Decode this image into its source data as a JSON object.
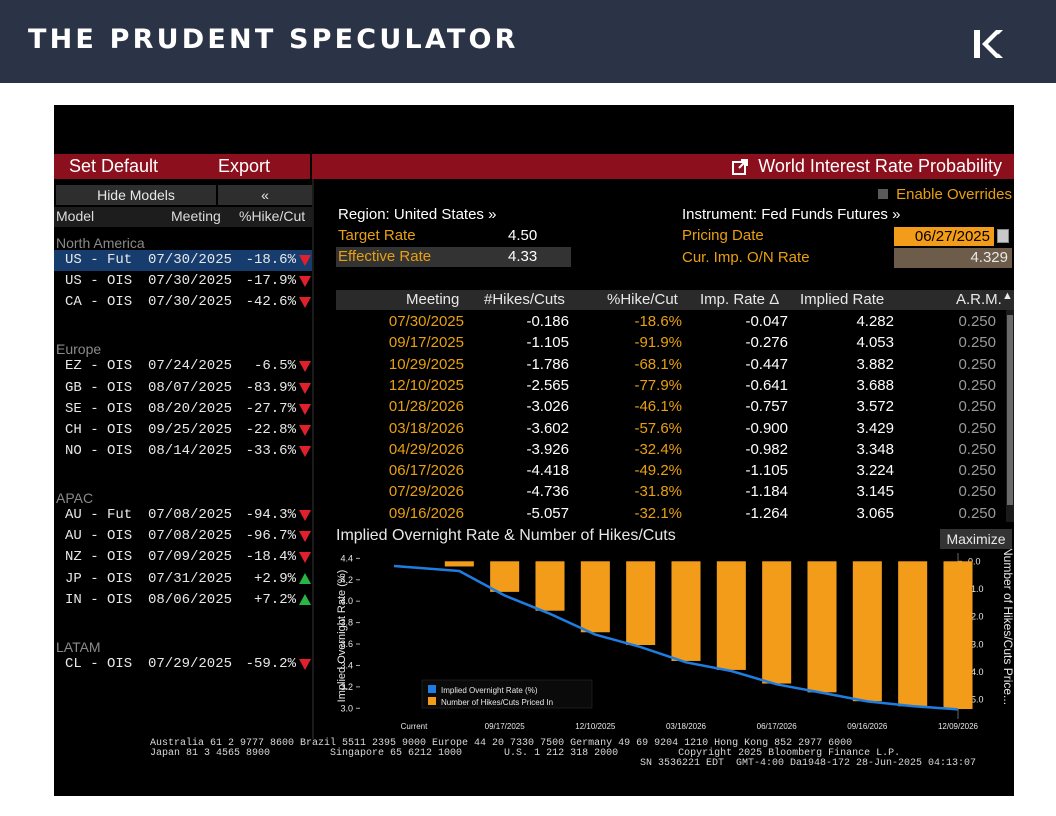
{
  "header": {
    "brand": "THE PRUDENT SPECULATOR",
    "logo_icon": "tps-logo-icon"
  },
  "toolbar": {
    "set_default": "Set Default",
    "export": "Export",
    "title": "World Interest Rate Probability",
    "title_icon": "external-link-icon"
  },
  "left_panel": {
    "hide_models": "Hide Models",
    "collapse": "«",
    "columns": [
      "Model",
      "Meeting",
      "%Hike/Cut"
    ],
    "groups": [
      {
        "name": "North America",
        "rows": [
          {
            "model": "US - Fut",
            "meeting": "07/30/2025",
            "pct": "-18.6%",
            "dir": "down",
            "selected": true
          },
          {
            "model": "US - OIS",
            "meeting": "07/30/2025",
            "pct": "-17.9%",
            "dir": "down"
          },
          {
            "model": "CA - OIS",
            "meeting": "07/30/2025",
            "pct": "-42.6%",
            "dir": "down"
          }
        ]
      },
      {
        "name": "Europe",
        "rows": [
          {
            "model": "EZ - OIS",
            "meeting": "07/24/2025",
            "pct": "-6.5%",
            "dir": "down"
          },
          {
            "model": "GB - OIS",
            "meeting": "08/07/2025",
            "pct": "-83.9%",
            "dir": "down"
          },
          {
            "model": "SE - OIS",
            "meeting": "08/20/2025",
            "pct": "-27.7%",
            "dir": "down"
          },
          {
            "model": "CH - OIS",
            "meeting": "09/25/2025",
            "pct": "-22.8%",
            "dir": "down"
          },
          {
            "model": "NO - OIS",
            "meeting": "08/14/2025",
            "pct": "-33.6%",
            "dir": "down"
          }
        ]
      },
      {
        "name": "APAC",
        "rows": [
          {
            "model": "AU - Fut",
            "meeting": "07/08/2025",
            "pct": "-94.3%",
            "dir": "down"
          },
          {
            "model": "AU - OIS",
            "meeting": "07/08/2025",
            "pct": "-96.7%",
            "dir": "down"
          },
          {
            "model": "NZ - OIS",
            "meeting": "07/09/2025",
            "pct": "-18.4%",
            "dir": "down"
          },
          {
            "model": "JP - OIS",
            "meeting": "07/31/2025",
            "pct": "+2.9%",
            "dir": "up"
          },
          {
            "model": "IN - OIS",
            "meeting": "08/06/2025",
            "pct": "+7.2%",
            "dir": "up"
          }
        ]
      },
      {
        "name": "LATAM",
        "rows": [
          {
            "model": "CL - OIS",
            "meeting": "07/29/2025",
            "pct": "-59.2%",
            "dir": "down"
          }
        ]
      }
    ]
  },
  "main": {
    "enable_overrides": "Enable Overrides",
    "region": "Region: United States »",
    "instrument": "Instrument: Fed Funds Futures »",
    "target_rate_label": "Target Rate",
    "target_rate": "4.50",
    "effective_rate_label": "Effective Rate",
    "effective_rate": "4.33",
    "pricing_date_label": "Pricing Date",
    "pricing_date": "06/27/2025",
    "cur_imp_label": "Cur. Imp. O/N Rate",
    "cur_imp": "4.329"
  },
  "table": {
    "columns": [
      "Meeting",
      "#Hikes/Cuts",
      "%Hike/Cut",
      "Imp. Rate Δ",
      "Implied Rate",
      "A.R.M."
    ],
    "rows": [
      [
        "07/30/2025",
        "-0.186",
        "-18.6%",
        "-0.047",
        "4.282",
        "0.250"
      ],
      [
        "09/17/2025",
        "-1.105",
        "-91.9%",
        "-0.276",
        "4.053",
        "0.250"
      ],
      [
        "10/29/2025",
        "-1.786",
        "-68.1%",
        "-0.447",
        "3.882",
        "0.250"
      ],
      [
        "12/10/2025",
        "-2.565",
        "-77.9%",
        "-0.641",
        "3.688",
        "0.250"
      ],
      [
        "01/28/2026",
        "-3.026",
        "-46.1%",
        "-0.757",
        "3.572",
        "0.250"
      ],
      [
        "03/18/2026",
        "-3.602",
        "-57.6%",
        "-0.900",
        "3.429",
        "0.250"
      ],
      [
        "04/29/2026",
        "-3.926",
        "-32.4%",
        "-0.982",
        "3.348",
        "0.250"
      ],
      [
        "06/17/2026",
        "-4.418",
        "-49.2%",
        "-1.105",
        "3.224",
        "0.250"
      ],
      [
        "07/29/2026",
        "-4.736",
        "-31.8%",
        "-1.184",
        "3.145",
        "0.250"
      ],
      [
        "09/16/2026",
        "-5.057",
        "-32.1%",
        "-1.264",
        "3.065",
        "0.250"
      ]
    ]
  },
  "chart": {
    "title": "Implied Overnight Rate & Number of Hikes/Cuts",
    "maximize": "Maximize"
  },
  "chart_data": {
    "type": "bar",
    "title": "",
    "ylabel": "Implied Overnight Rate (%)",
    "y2label": "Number of Hikes/Cuts Price...",
    "ylim": [
      2.9,
      4.45
    ],
    "y2lim": [
      -5.7,
      0.3
    ],
    "yticks": [
      "4.4",
      "4.2",
      "4.0",
      "3.8",
      "3.6",
      "3.4",
      "3.2",
      "3.0"
    ],
    "y2ticks": [
      "0.0",
      "-1.0",
      "-2.0",
      "-3.0",
      "-4.0",
      "-5.0"
    ],
    "xtick_labels": [
      "Current",
      "09/17/2025",
      "12/10/2025",
      "03/18/2026",
      "06/17/2026",
      "09/16/2026",
      "12/09/2026"
    ],
    "categories": [
      "Current",
      "07/30/2025",
      "09/17/2025",
      "10/29/2025",
      "12/10/2025",
      "01/28/2026",
      "03/18/2026",
      "04/29/2026",
      "06/17/2026",
      "07/29/2026",
      "09/16/2026",
      "10/28/2026",
      "12/09/2026"
    ],
    "series": [
      {
        "name": "Implied Overnight Rate (%)",
        "type": "line",
        "color": "#1f7de0",
        "values": [
          4.329,
          4.282,
          4.053,
          3.882,
          3.688,
          3.572,
          3.429,
          3.348,
          3.224,
          3.145,
          3.065,
          3.02,
          2.99
        ]
      },
      {
        "name": "Number of Hikes/Cuts Priced In",
        "type": "bar",
        "color": "#f39c1a",
        "values": [
          0,
          -0.186,
          -1.105,
          -1.786,
          -2.565,
          -3.026,
          -3.602,
          -3.926,
          -4.418,
          -4.736,
          -5.057,
          -5.24,
          -5.34
        ]
      }
    ],
    "legend_position": "bottom-left"
  },
  "footer": {
    "line1": "Australia 61 2 9777 8600 Brazil 5511 2395 9000 Europe 44 20 7330 7500 Germany 49 69 9204 1210 Hong Kong 852 2977 6000",
    "line2": "Japan 81 3 4565 8900          Singapore 65 6212 1000       U.S. 1 212 318 2000          Copyright 2025 Bloomberg Finance L.P.",
    "line3": "SN 3536221 EDT  GMT-4:00 Da1948-172 28-Jun-2025 04:13:07"
  },
  "colors": {
    "header_bg": "#2b3447",
    "toolbar_red": "#8b0f1c",
    "orange": "#e8a010",
    "bar": "#f39c1a",
    "line": "#1f7de0",
    "select_blue": "#173d6e"
  }
}
